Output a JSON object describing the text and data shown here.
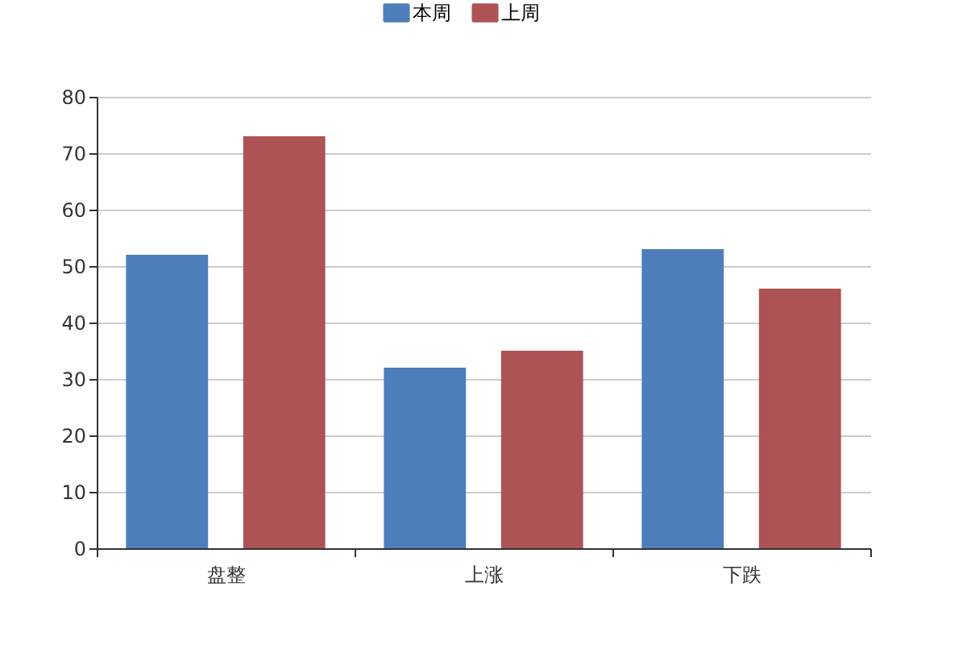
{
  "chart_data": {
    "type": "bar",
    "categories": [
      "盘整",
      "上涨",
      "下跌"
    ],
    "series": [
      {
        "name": "本周",
        "color": "#4e7dbb",
        "values": [
          52,
          32,
          53
        ]
      },
      {
        "name": "上周",
        "color": "#ad5356",
        "values": [
          73,
          35,
          46
        ]
      }
    ],
    "ylim": [
      0,
      80
    ],
    "yticks": [
      0,
      10,
      20,
      30,
      40,
      50,
      60,
      70,
      80
    ],
    "grid": "y",
    "legend": "top"
  }
}
